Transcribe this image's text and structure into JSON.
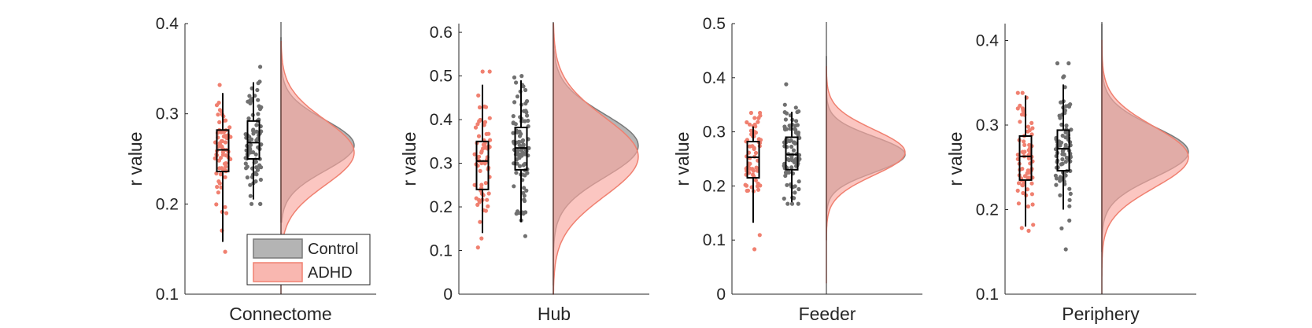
{
  "chart_data": [
    {
      "type": "raincloud",
      "xlabel": "Connectome",
      "ylabel": "r value",
      "ylim": [
        0.1,
        0.4
      ],
      "yticks": [
        "0.1",
        "0.2",
        "0.3",
        "0.4"
      ],
      "groups": [
        {
          "name": "ADHD",
          "q1": 0.236,
          "median": 0.26,
          "q3": 0.282,
          "whisker_low": 0.158,
          "whisker_high": 0.323,
          "min": 0.147,
          "max": 0.332,
          "n_points": 70
        },
        {
          "name": "Control",
          "q1": 0.25,
          "median": 0.268,
          "q3": 0.292,
          "whisker_low": 0.205,
          "whisker_high": 0.335,
          "min": 0.2,
          "max": 0.352,
          "n_points": 85
        }
      ],
      "densities": [
        {
          "name": "Control",
          "mean": 0.265,
          "sd": 0.028,
          "range": [
            0.18,
            0.385
          ]
        },
        {
          "name": "ADHD",
          "mean": 0.257,
          "sd": 0.036,
          "range": [
            0.1,
            0.38
          ]
        }
      ]
    },
    {
      "type": "raincloud",
      "xlabel": "Hub",
      "ylabel": "r value",
      "ylim": [
        0,
        0.62
      ],
      "yticks": [
        "0",
        "0.1",
        "0.2",
        "0.3",
        "0.4",
        "0.5",
        "0.6"
      ],
      "groups": [
        {
          "name": "ADHD",
          "q1": 0.24,
          "median": 0.305,
          "q3": 0.35,
          "whisker_low": 0.14,
          "whisker_high": 0.48,
          "min": 0.107,
          "max": 0.51,
          "n_points": 70
        },
        {
          "name": "Control",
          "q1": 0.285,
          "median": 0.335,
          "q3": 0.382,
          "whisker_low": 0.165,
          "whisker_high": 0.49,
          "min": 0.133,
          "max": 0.5,
          "n_points": 95
        }
      ],
      "densities": [
        {
          "name": "Control",
          "mean": 0.34,
          "sd": 0.072,
          "range": [
            0.02,
            0.62
          ]
        },
        {
          "name": "ADHD",
          "mean": 0.315,
          "sd": 0.09,
          "range": [
            0,
            0.62
          ]
        }
      ]
    },
    {
      "type": "raincloud",
      "xlabel": "Feeder",
      "ylabel": "r value",
      "ylim": [
        0,
        0.5
      ],
      "yticks": [
        "0",
        "0.1",
        "0.2",
        "0.3",
        "0.4",
        "0.5"
      ],
      "groups": [
        {
          "name": "ADHD",
          "q1": 0.215,
          "median": 0.253,
          "q3": 0.282,
          "whisker_low": 0.132,
          "whisker_high": 0.31,
          "min": 0.083,
          "max": 0.335,
          "n_points": 65
        },
        {
          "name": "Control",
          "q1": 0.23,
          "median": 0.258,
          "q3": 0.29,
          "whisker_low": 0.17,
          "whisker_high": 0.337,
          "min": 0.167,
          "max": 0.388,
          "n_points": 85
        }
      ],
      "densities": [
        {
          "name": "Control",
          "mean": 0.258,
          "sd": 0.033,
          "range": [
            0.1,
            0.44
          ]
        },
        {
          "name": "ADHD",
          "mean": 0.262,
          "sd": 0.042,
          "range": [
            0.02,
            0.42
          ]
        }
      ]
    },
    {
      "type": "raincloud",
      "xlabel": "Periphery",
      "ylabel": "r value",
      "ylim": [
        0.1,
        0.42
      ],
      "yticks": [
        "0.1",
        "0.2",
        "0.3",
        "0.4"
      ],
      "groups": [
        {
          "name": "ADHD",
          "q1": 0.235,
          "median": 0.263,
          "q3": 0.287,
          "whisker_low": 0.18,
          "whisker_high": 0.335,
          "min": 0.175,
          "max": 0.338,
          "n_points": 70
        },
        {
          "name": "Control",
          "q1": 0.246,
          "median": 0.272,
          "q3": 0.294,
          "whisker_low": 0.2,
          "whisker_high": 0.348,
          "min": 0.153,
          "max": 0.373,
          "n_points": 90
        }
      ],
      "densities": [
        {
          "name": "Control",
          "mean": 0.268,
          "sd": 0.03,
          "range": [
            0.15,
            0.42
          ]
        },
        {
          "name": "ADHD",
          "mean": 0.262,
          "sd": 0.036,
          "range": [
            0.1,
            0.4
          ]
        }
      ]
    }
  ],
  "legend": {
    "placement": "bottom-right of first panel",
    "entries": [
      {
        "label": "Control",
        "fill": "#b4b4b4",
        "edge": "#7a7a7a"
      },
      {
        "label": "ADHD",
        "fill": "#f9b7b0",
        "edge": "#f08070"
      }
    ]
  },
  "colors": {
    "adhd_point": "#f08070",
    "control_point": "#707070",
    "adhd_fill": "#f9a89f",
    "adhd_edge": "#f08070",
    "control_fill": "#a8a8a8",
    "control_edge": "#7a7a7a",
    "axis": "#262626"
  }
}
